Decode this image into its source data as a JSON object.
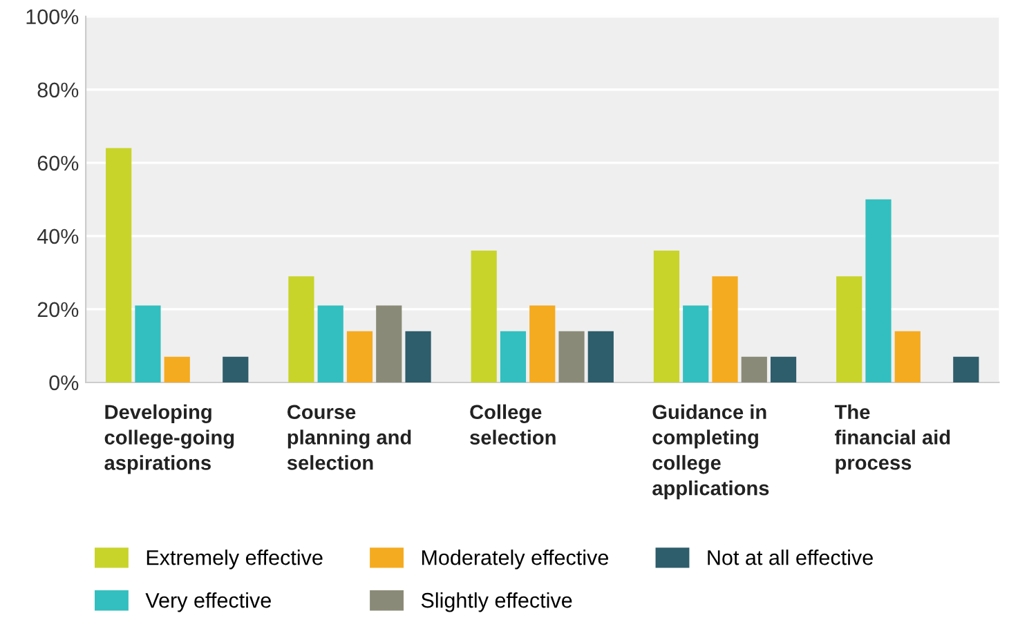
{
  "chart_data": {
    "type": "bar",
    "categories": [
      "Developing\ncollege-going\naspirations",
      "Course\nplanning and\nselection",
      "College\nselection",
      "Guidance in\ncompleting\ncollege\napplications",
      "The\nfinancial aid\nprocess"
    ],
    "series": [
      {
        "name": "Extremely effective",
        "color": "#c8d42a",
        "values": [
          64,
          29,
          36,
          36,
          29
        ]
      },
      {
        "name": "Very effective",
        "color": "#33bfbf",
        "values": [
          21,
          21,
          14,
          21,
          50
        ]
      },
      {
        "name": "Moderately effective",
        "color": "#f5ab1f",
        "values": [
          7,
          14,
          21,
          29,
          14
        ]
      },
      {
        "name": "Slightly effective",
        "color": "#8a8a78",
        "values": [
          0,
          21,
          14,
          7,
          0
        ]
      },
      {
        "name": "Not at all effective",
        "color": "#2e5d6b",
        "values": [
          7,
          14,
          14,
          7,
          7
        ]
      }
    ],
    "ylim": [
      0,
      100
    ],
    "yticks": [
      {
        "value": 0,
        "label": "0%"
      },
      {
        "value": 20,
        "label": "20%"
      },
      {
        "value": 40,
        "label": "40%"
      },
      {
        "value": 60,
        "label": "60%"
      },
      {
        "value": 80,
        "label": "80%"
      },
      {
        "value": 100,
        "label": "100%"
      }
    ],
    "grid": "y",
    "legend": "bottom"
  }
}
